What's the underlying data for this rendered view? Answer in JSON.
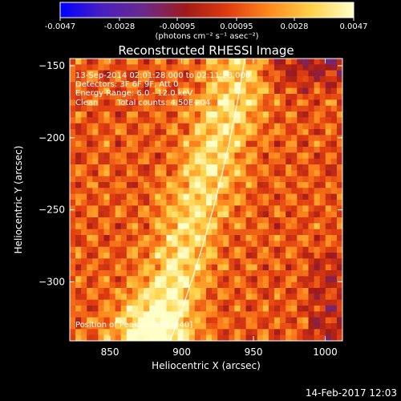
{
  "chart_data": {
    "type": "heatmap",
    "title": "Reconstructed RHESSI Image",
    "xlabel": "Heliocentric X (arcsec)",
    "ylabel": "Heliocentric Y (arcsec)",
    "xlim": [
      822,
      1012
    ],
    "ylim": [
      -341,
      -145
    ],
    "x_ticks": [
      "850",
      "900",
      "950",
      "1000"
    ],
    "x_tick_values": [
      850,
      900,
      950,
      1000
    ],
    "y_ticks": [
      "-150",
      "-200",
      "-250",
      "-300"
    ],
    "y_tick_values": [
      -150,
      -200,
      -250,
      -300
    ],
    "colorbar": {
      "ticks": [
        "-0.0047",
        "-0.0028",
        "-0.00095",
        "0.00095",
        "0.0028",
        "0.0047"
      ],
      "tick_values": [
        -0.0047,
        -0.0028,
        -0.00095,
        0.00095,
        0.0028,
        0.0047
      ],
      "range": [
        -0.0047,
        0.0047
      ],
      "unit_label": "(photons cm⁻² s⁻¹ asec⁻²)"
    },
    "colormap": [
      "#0000ff",
      "#4a1fbf",
      "#6a2a8a",
      "#a01a1a",
      "#e03c10",
      "#ff8a1e",
      "#ffd24a",
      "#ffffc8"
    ],
    "limb_color": "#ffffff",
    "peak": {
      "x": 879,
      "y": -340
    },
    "annotations": {
      "line1": "13-Sep-2014 02:01:28.000 to 02:11:28.000",
      "line2": "Detectors: 3F 6F 9F, Att 0",
      "line3": "Energy Range: 6.0 - 12.0 keV",
      "line4_method": "Clean",
      "line4_counts": "Total counts: 4.50E+04",
      "peak": "Position of Peak = [879,-340]"
    },
    "timestamp": "14-Feb-2017 12:03"
  }
}
